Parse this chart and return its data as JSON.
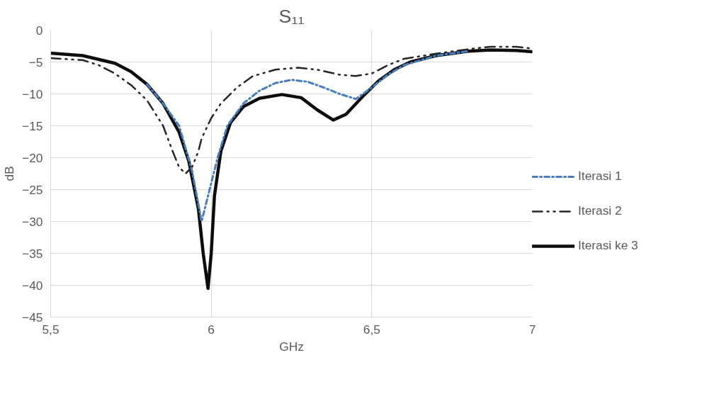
{
  "chart_data": {
    "type": "line",
    "title": "S₁₁",
    "xlabel": "GHz",
    "ylabel": "dB",
    "xlim": [
      5.5,
      7
    ],
    "xticks": [
      {
        "value": 5.5,
        "label": "5,5"
      },
      6,
      {
        "value": 6.5,
        "label": "6,5"
      },
      7
    ],
    "ylim": [
      -45,
      0
    ],
    "yticks": [
      -45,
      -40,
      -35,
      -30,
      -25,
      -20,
      -15,
      -10,
      -5,
      0
    ],
    "grid": true,
    "legend": "right",
    "marker": "none",
    "series": [
      {
        "name": "Iterasi 1",
        "color": "#4a7ebb",
        "line_style": "dashdot",
        "x": [
          5.8,
          5.85,
          5.9,
          5.94,
          5.97,
          5.985,
          6.0,
          6.02,
          6.05,
          6.1,
          6.15,
          6.2,
          6.25,
          6.3,
          6.35,
          6.4,
          6.45,
          6.5,
          6.55,
          6.6,
          6.7,
          6.8
        ],
        "values": [
          -8.5,
          -11.5,
          -15,
          -22,
          -30,
          -27,
          -24,
          -20,
          -15,
          -11.5,
          -9.5,
          -8.3,
          -7.8,
          -8.1,
          -9,
          -10,
          -10.8,
          -9,
          -7,
          -5.5,
          -4,
          -3.3
        ]
      },
      {
        "name": "Iterasi 2",
        "color": "#262626",
        "line_style": "dashdotdot",
        "x": [
          5.5,
          5.6,
          5.65,
          5.7,
          5.75,
          5.8,
          5.85,
          5.88,
          5.9,
          5.92,
          5.94,
          5.96,
          5.97,
          6.0,
          6.03,
          6.08,
          6.13,
          6.2,
          6.27,
          6.33,
          6.4,
          6.45,
          6.5,
          6.55,
          6.6,
          6.7,
          6.8,
          6.87,
          6.95,
          7.0
        ],
        "values": [
          -4.4,
          -4.7,
          -5.5,
          -6.8,
          -8.6,
          -11,
          -15,
          -19,
          -21.5,
          -22.5,
          -21.5,
          -19,
          -17,
          -13.8,
          -11.5,
          -9,
          -7.2,
          -6.2,
          -5.9,
          -6.2,
          -7,
          -7.2,
          -6.8,
          -5.5,
          -4.5,
          -3.7,
          -3.0,
          -2.6,
          -2.6,
          -2.9
        ]
      },
      {
        "name": "Iterasi ke 3",
        "color": "#0d0d0d",
        "line_style": "solid",
        "x": [
          5.5,
          5.6,
          5.7,
          5.75,
          5.8,
          5.85,
          5.9,
          5.93,
          5.96,
          5.975,
          5.99,
          6.0,
          6.01,
          6.03,
          6.06,
          6.1,
          6.15,
          6.22,
          6.28,
          6.33,
          6.38,
          6.42,
          6.47,
          6.52,
          6.57,
          6.62,
          6.7,
          6.8,
          6.87,
          6.95,
          7.0
        ],
        "values": [
          -3.6,
          -4.0,
          -5.2,
          -6.5,
          -8.5,
          -11.5,
          -16,
          -20.5,
          -28,
          -35,
          -40.5,
          -35,
          -26,
          -19,
          -14.5,
          -12,
          -10.7,
          -10.1,
          -10.6,
          -12.5,
          -14.1,
          -13.2,
          -10.5,
          -8,
          -6.2,
          -5,
          -4,
          -3.3,
          -3.1,
          -3.2,
          -3.4
        ]
      }
    ]
  }
}
